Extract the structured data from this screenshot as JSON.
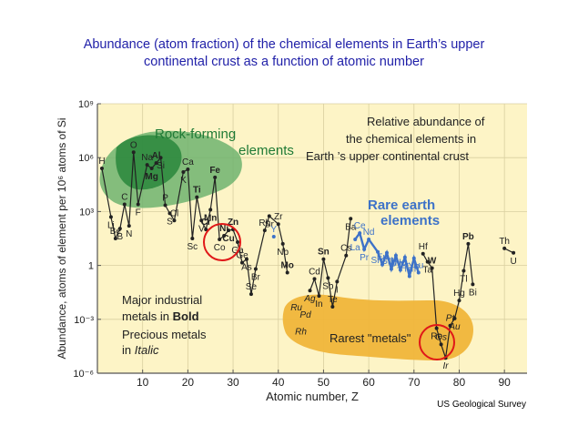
{
  "title_line1": "Abundance (atom fraction) of the chemical elements in Earth’s upper",
  "title_line2": "continental crust as a function of atomic number",
  "source": "US Geological Survey",
  "colors": {
    "background": "#fdf4c6",
    "rock_forming": "#2f8a3f",
    "rare_earth": "#3d72c8",
    "rarest": "#f0b53a",
    "circle": "#e01818",
    "title": "#1f1fa8"
  },
  "chart_data": {
    "type": "line",
    "xlabel": "Atomic number, Z",
    "ylabel": "Abundance, atoms of element per 10⁶ atoms of Si",
    "xlim": [
      0,
      95
    ],
    "ylim_log10": [
      -6,
      9
    ],
    "xticks": [
      10,
      20,
      30,
      40,
      50,
      60,
      70,
      80,
      90
    ],
    "yticks": [
      {
        "exp": 9,
        "label": "10⁹"
      },
      {
        "exp": 6,
        "label": "10⁶"
      },
      {
        "exp": 3,
        "label": "10³"
      },
      {
        "exp": 0,
        "label": "1"
      },
      {
        "exp": -3,
        "label": "10⁻³"
      },
      {
        "exp": -6,
        "label": "10⁻⁶"
      }
    ],
    "grid": true,
    "series": [
      {
        "type": "main",
        "points": [
          {
            "z": 1,
            "log": 5.4,
            "sym": "H"
          },
          {
            "z": 3,
            "log": 2.7,
            "sym": "Li"
          },
          {
            "z": 4,
            "log": 1.5,
            "sym": "Be"
          },
          {
            "z": 5,
            "log": 2.05,
            "sym": "B"
          },
          {
            "z": 6,
            "log": 3.4,
            "sym": "C"
          },
          {
            "z": 7,
            "log": 2.2,
            "sym": "N"
          },
          {
            "z": 8,
            "log": 6.3,
            "sym": "O"
          },
          {
            "z": 9,
            "log": 3.4,
            "sym": "F"
          },
          {
            "z": 11,
            "log": 5.6,
            "sym": "Na"
          },
          {
            "z": 12,
            "log": 5.4,
            "sym": "Mg"
          },
          {
            "z": 13,
            "log": 5.7,
            "sym": "Al"
          },
          {
            "z": 14,
            "log": 6.0,
            "sym": "Si"
          },
          {
            "z": 15,
            "log": 3.35,
            "sym": "P"
          },
          {
            "z": 16,
            "log": 2.9,
            "sym": "S"
          },
          {
            "z": 17,
            "log": 2.5,
            "sym": "Cl"
          },
          {
            "z": 19,
            "log": 5.2,
            "sym": "K"
          },
          {
            "z": 20,
            "log": 5.35,
            "sym": "Ca"
          },
          {
            "z": 21,
            "log": 1.5,
            "sym": "Sc"
          },
          {
            "z": 22,
            "log": 3.8,
            "sym": "Ti"
          },
          {
            "z": 23,
            "log": 2.5,
            "sym": "V"
          },
          {
            "z": 24,
            "log": 2.0,
            "sym": "Cr"
          },
          {
            "z": 25,
            "log": 3.1,
            "sym": "Mn"
          },
          {
            "z": 26,
            "log": 4.9,
            "sym": "Fe"
          },
          {
            "z": 27,
            "log": 1.45,
            "sym": "Co"
          },
          {
            "z": 28,
            "log": 1.65,
            "sym": "Ni"
          },
          {
            "z": 29,
            "log": 1.95,
            "sym": "Cu"
          },
          {
            "z": 30,
            "log": 2.0,
            "sym": "Zn"
          },
          {
            "z": 31,
            "log": 1.3,
            "sym": "Ga"
          },
          {
            "z": 32,
            "log": 0.15,
            "sym": "Ge"
          },
          {
            "z": 33,
            "log": 0.35,
            "sym": "As"
          },
          {
            "z": 34,
            "log": -1.6,
            "sym": "Se"
          },
          {
            "z": 35,
            "log": -0.2,
            "sym": "Br"
          },
          {
            "z": 37,
            "log": 1.95,
            "sym": "Rb"
          },
          {
            "z": 38,
            "log": 2.75,
            "sym": "Sr"
          },
          {
            "z": 40,
            "log": 2.3,
            "sym": "Zr"
          },
          {
            "z": 41,
            "log": 1.2,
            "sym": "Nb"
          },
          {
            "z": 42,
            "log": -0.4,
            "sym": "Mo"
          },
          {
            "z": 47,
            "log": -1.4,
            "sym": "Ag"
          },
          {
            "z": 48,
            "log": -0.75,
            "sym": "Cd"
          },
          {
            "z": 49,
            "log": -1.7,
            "sym": "In"
          },
          {
            "z": 50,
            "log": 0.35,
            "sym": "Sn"
          },
          {
            "z": 51,
            "log": -0.7,
            "sym": "Sb"
          },
          {
            "z": 52,
            "log": -2.3,
            "sym": "Te"
          },
          {
            "z": 53,
            "log": -0.9,
            "sym": "I"
          },
          {
            "z": 55,
            "log": 0.55,
            "sym": "Cs"
          },
          {
            "z": 56,
            "log": 2.6,
            "sym": "Ba"
          },
          {
            "z": 72,
            "log": 0.65,
            "sym": "Hf"
          },
          {
            "z": 73,
            "log": 0.2,
            "sym": "Ta"
          },
          {
            "z": 74,
            "log": -0.15,
            "sym": "W"
          },
          {
            "z": 75,
            "log": -3.5,
            "sym": "Re"
          },
          {
            "z": 76,
            "log": -4.4,
            "sym": "Os"
          },
          {
            "z": 77,
            "log": -5.15,
            "sym": "Ir"
          },
          {
            "z": 78,
            "log": -3.35,
            "sym": "Pt"
          },
          {
            "z": 79,
            "log": -2.95,
            "sym": "Au"
          },
          {
            "z": 80,
            "log": -1.95,
            "sym": "Hg"
          },
          {
            "z": 81,
            "log": -0.3,
            "sym": "Tl"
          },
          {
            "z": 82,
            "log": 1.2,
            "sym": "Pb"
          },
          {
            "z": 83,
            "log": -1.05,
            "sym": "Bi"
          },
          {
            "z": 90,
            "log": 0.95,
            "sym": "Th"
          },
          {
            "z": 92,
            "log": 0.7,
            "sym": "U"
          }
        ]
      },
      {
        "type": "rare_earth",
        "points": [
          {
            "z": 39,
            "log": 1.6,
            "sym": "Y"
          },
          {
            "z": 57,
            "log": 1.45,
            "sym": "La"
          },
          {
            "z": 58,
            "log": 1.8,
            "sym": "Ce"
          },
          {
            "z": 59,
            "log": 0.9,
            "sym": "Pr"
          },
          {
            "z": 60,
            "log": 1.45,
            "sym": "Nd"
          },
          {
            "z": 62,
            "log": 0.75,
            "sym": "Sm"
          },
          {
            "z": 63,
            "log": 0.05,
            "sym": "Eu"
          },
          {
            "z": 64,
            "log": 0.7,
            "sym": "Gd"
          },
          {
            "z": 65,
            "log": -0.2,
            "sym": "Tb"
          },
          {
            "z": 66,
            "log": 0.55,
            "sym": "Dy"
          },
          {
            "z": 67,
            "log": -0.25,
            "sym": "Ho"
          },
          {
            "z": 68,
            "log": 0.45,
            "sym": "Er"
          },
          {
            "z": 69,
            "log": -0.6,
            "sym": "Tm"
          },
          {
            "z": 70,
            "log": 0.4,
            "sym": "Yb"
          },
          {
            "z": 71,
            "log": -0.4,
            "sym": "Lu"
          }
        ]
      }
    ],
    "annotations": {
      "rock_forming_1": "Rock-forming",
      "rock_forming_2": "elements",
      "legend_1": "Relative abundance of",
      "legend_2": "the chemical elements in",
      "legend_3": "Earth ’s upper continental crust",
      "rare_earth_1": "Rare earth",
      "rare_earth_2": "elements",
      "industrial_1": "Major industrial",
      "industrial_2": "metals in",
      "industrial_bold": "Bold",
      "precious_1": "Precious metals",
      "precious_2": "in",
      "precious_italic": "Italic",
      "rarest": "Rarest \"metals\""
    },
    "bold_symbols": [
      "Al",
      "Mg",
      "Fe",
      "Ti",
      "Mn",
      "Cr",
      "Ni",
      "Cu",
      "Zn",
      "Mo",
      "Sn",
      "W",
      "Pb"
    ],
    "italic_symbols": [
      "Ag",
      "Ru",
      "Rh",
      "Pd",
      "Os",
      "Ir",
      "Pt",
      "Au"
    ],
    "unconnected_labels": [
      {
        "z": 44,
        "log": -2.5,
        "sym": "Ru"
      },
      {
        "z": 45,
        "log": -3.85,
        "sym": "Rh"
      },
      {
        "z": 46,
        "log": -2.9,
        "sym": "Pd"
      }
    ]
  }
}
